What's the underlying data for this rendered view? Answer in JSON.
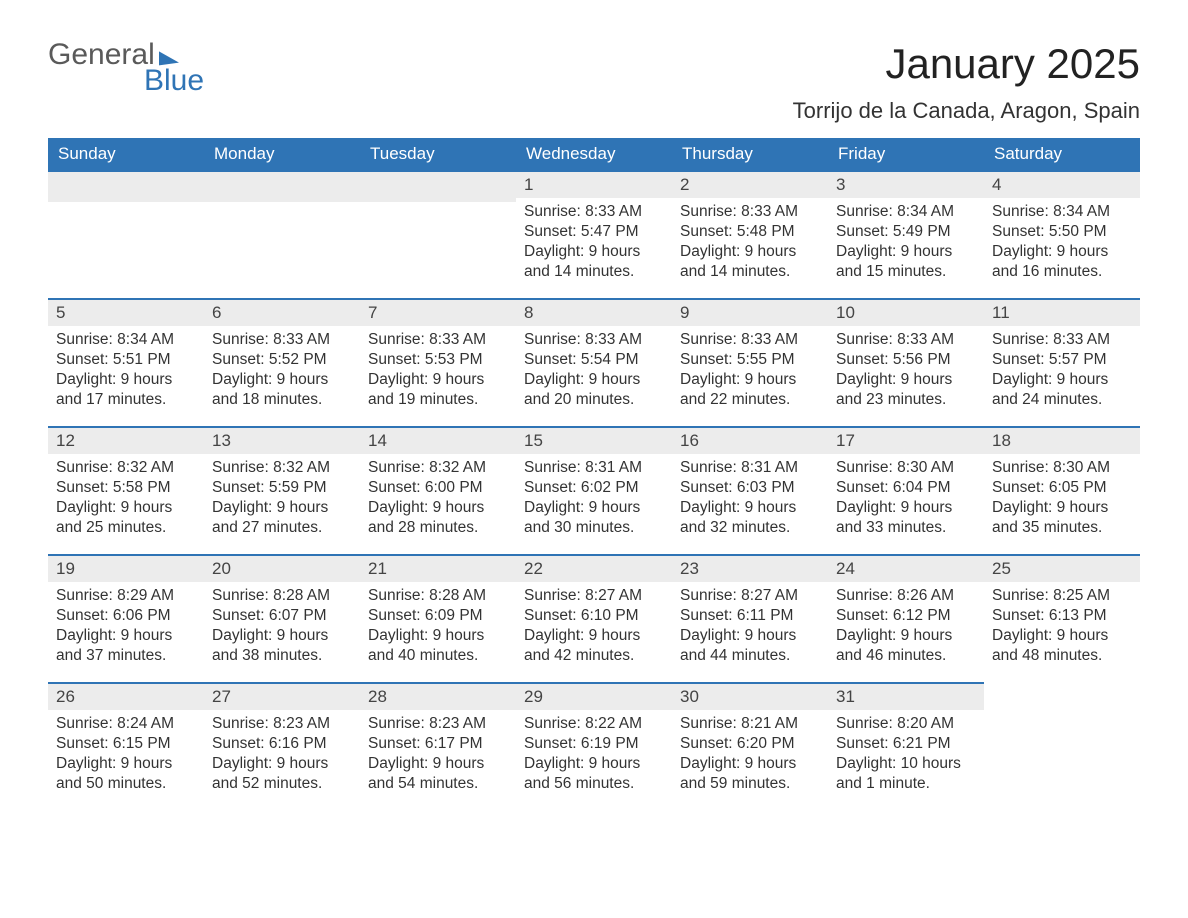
{
  "brand": {
    "general": "General",
    "blue": "Blue"
  },
  "title": "January 2025",
  "location": "Torrijo de la Canada, Aragon, Spain",
  "colors": {
    "header_bg": "#2f74b5",
    "header_text": "#ffffff",
    "day_header_bg": "#ececec",
    "day_border": "#2f74b5",
    "body_text": "#333333",
    "logo_gray": "#5a5a5a"
  },
  "weekdays": [
    "Sunday",
    "Monday",
    "Tuesday",
    "Wednesday",
    "Thursday",
    "Friday",
    "Saturday"
  ],
  "weeks": [
    [
      null,
      null,
      null,
      {
        "n": "1",
        "sunrise": "8:33 AM",
        "sunset": "5:47 PM",
        "dl1": "9 hours",
        "dl2": "and 14 minutes."
      },
      {
        "n": "2",
        "sunrise": "8:33 AM",
        "sunset": "5:48 PM",
        "dl1": "9 hours",
        "dl2": "and 14 minutes."
      },
      {
        "n": "3",
        "sunrise": "8:34 AM",
        "sunset": "5:49 PM",
        "dl1": "9 hours",
        "dl2": "and 15 minutes."
      },
      {
        "n": "4",
        "sunrise": "8:34 AM",
        "sunset": "5:50 PM",
        "dl1": "9 hours",
        "dl2": "and 16 minutes."
      }
    ],
    [
      {
        "n": "5",
        "sunrise": "8:34 AM",
        "sunset": "5:51 PM",
        "dl1": "9 hours",
        "dl2": "and 17 minutes."
      },
      {
        "n": "6",
        "sunrise": "8:33 AM",
        "sunset": "5:52 PM",
        "dl1": "9 hours",
        "dl2": "and 18 minutes."
      },
      {
        "n": "7",
        "sunrise": "8:33 AM",
        "sunset": "5:53 PM",
        "dl1": "9 hours",
        "dl2": "and 19 minutes."
      },
      {
        "n": "8",
        "sunrise": "8:33 AM",
        "sunset": "5:54 PM",
        "dl1": "9 hours",
        "dl2": "and 20 minutes."
      },
      {
        "n": "9",
        "sunrise": "8:33 AM",
        "sunset": "5:55 PM",
        "dl1": "9 hours",
        "dl2": "and 22 minutes."
      },
      {
        "n": "10",
        "sunrise": "8:33 AM",
        "sunset": "5:56 PM",
        "dl1": "9 hours",
        "dl2": "and 23 minutes."
      },
      {
        "n": "11",
        "sunrise": "8:33 AM",
        "sunset": "5:57 PM",
        "dl1": "9 hours",
        "dl2": "and 24 minutes."
      }
    ],
    [
      {
        "n": "12",
        "sunrise": "8:32 AM",
        "sunset": "5:58 PM",
        "dl1": "9 hours",
        "dl2": "and 25 minutes."
      },
      {
        "n": "13",
        "sunrise": "8:32 AM",
        "sunset": "5:59 PM",
        "dl1": "9 hours",
        "dl2": "and 27 minutes."
      },
      {
        "n": "14",
        "sunrise": "8:32 AM",
        "sunset": "6:00 PM",
        "dl1": "9 hours",
        "dl2": "and 28 minutes."
      },
      {
        "n": "15",
        "sunrise": "8:31 AM",
        "sunset": "6:02 PM",
        "dl1": "9 hours",
        "dl2": "and 30 minutes."
      },
      {
        "n": "16",
        "sunrise": "8:31 AM",
        "sunset": "6:03 PM",
        "dl1": "9 hours",
        "dl2": "and 32 minutes."
      },
      {
        "n": "17",
        "sunrise": "8:30 AM",
        "sunset": "6:04 PM",
        "dl1": "9 hours",
        "dl2": "and 33 minutes."
      },
      {
        "n": "18",
        "sunrise": "8:30 AM",
        "sunset": "6:05 PM",
        "dl1": "9 hours",
        "dl2": "and 35 minutes."
      }
    ],
    [
      {
        "n": "19",
        "sunrise": "8:29 AM",
        "sunset": "6:06 PM",
        "dl1": "9 hours",
        "dl2": "and 37 minutes."
      },
      {
        "n": "20",
        "sunrise": "8:28 AM",
        "sunset": "6:07 PM",
        "dl1": "9 hours",
        "dl2": "and 38 minutes."
      },
      {
        "n": "21",
        "sunrise": "8:28 AM",
        "sunset": "6:09 PM",
        "dl1": "9 hours",
        "dl2": "and 40 minutes."
      },
      {
        "n": "22",
        "sunrise": "8:27 AM",
        "sunset": "6:10 PM",
        "dl1": "9 hours",
        "dl2": "and 42 minutes."
      },
      {
        "n": "23",
        "sunrise": "8:27 AM",
        "sunset": "6:11 PM",
        "dl1": "9 hours",
        "dl2": "and 44 minutes."
      },
      {
        "n": "24",
        "sunrise": "8:26 AM",
        "sunset": "6:12 PM",
        "dl1": "9 hours",
        "dl2": "and 46 minutes."
      },
      {
        "n": "25",
        "sunrise": "8:25 AM",
        "sunset": "6:13 PM",
        "dl1": "9 hours",
        "dl2": "and 48 minutes."
      }
    ],
    [
      {
        "n": "26",
        "sunrise": "8:24 AM",
        "sunset": "6:15 PM",
        "dl1": "9 hours",
        "dl2": "and 50 minutes."
      },
      {
        "n": "27",
        "sunrise": "8:23 AM",
        "sunset": "6:16 PM",
        "dl1": "9 hours",
        "dl2": "and 52 minutes."
      },
      {
        "n": "28",
        "sunrise": "8:23 AM",
        "sunset": "6:17 PM",
        "dl1": "9 hours",
        "dl2": "and 54 minutes."
      },
      {
        "n": "29",
        "sunrise": "8:22 AM",
        "sunset": "6:19 PM",
        "dl1": "9 hours",
        "dl2": "and 56 minutes."
      },
      {
        "n": "30",
        "sunrise": "8:21 AM",
        "sunset": "6:20 PM",
        "dl1": "9 hours",
        "dl2": "and 59 minutes."
      },
      {
        "n": "31",
        "sunrise": "8:20 AM",
        "sunset": "6:21 PM",
        "dl1": "10 hours",
        "dl2": "and 1 minute."
      },
      null
    ]
  ],
  "labels": {
    "sunrise": "Sunrise: ",
    "sunset": "Sunset: ",
    "daylight": "Daylight: "
  }
}
